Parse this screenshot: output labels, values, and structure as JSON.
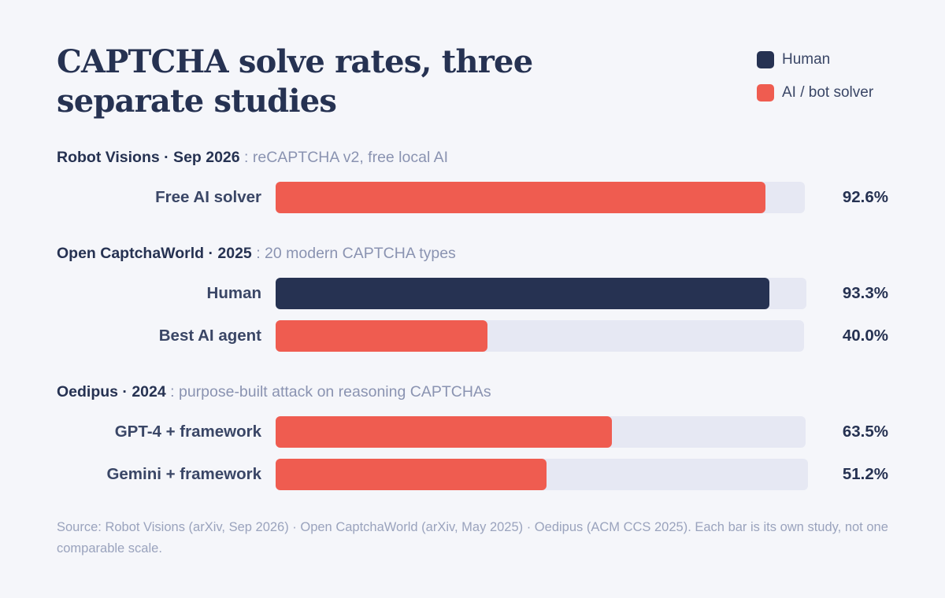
{
  "chart_data": {
    "type": "bar",
    "title": "CAPTCHA solve rates, three separate studies",
    "orientation": "horizontal",
    "value_unit": "%",
    "xlim": [
      0,
      100
    ],
    "legend": {
      "placement": "top-right",
      "items": [
        {
          "key": "human",
          "label": "Human",
          "color": "#263252"
        },
        {
          "key": "ai",
          "label": "AI / bot solver",
          "color": "#ef5c50"
        }
      ]
    },
    "groups": [
      {
        "name": "Robot Visions · Sep 2026",
        "description": " : reCAPTCHA v2, free local AI",
        "bars": [
          {
            "label": "Free AI solver",
            "value": 92.6,
            "display": "92.6%",
            "solver": "ai"
          }
        ]
      },
      {
        "name": "Open CaptchaWorld · 2025",
        "description": " : 20 modern CAPTCHA types",
        "bars": [
          {
            "label": "Human",
            "value": 93.3,
            "display": "93.3%",
            "solver": "human"
          },
          {
            "label": "Best AI agent",
            "value": 40.0,
            "display": "40.0%",
            "solver": "ai"
          }
        ]
      },
      {
        "name": "Oedipus · 2024",
        "description": " : purpose-built attack on reasoning CAPTCHAs",
        "bars": [
          {
            "label": "GPT-4 + framework",
            "value": 63.5,
            "display": "63.5%",
            "solver": "ai"
          },
          {
            "label": "Gemini + framework",
            "value": 51.2,
            "display": "51.2%",
            "solver": "ai"
          }
        ]
      }
    ],
    "source": "Source: Robot Visions (arXiv, Sep 2026) · Open CaptchaWorld (arXiv, May 2025) · Oedipus (ACM CCS 2025). Each bar is its own study, not one comparable scale."
  }
}
